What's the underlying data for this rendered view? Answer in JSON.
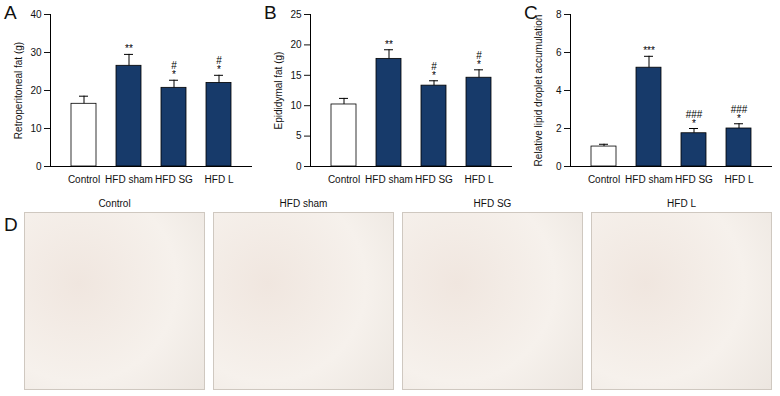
{
  "chart_data": [
    {
      "type": "bar",
      "panel": "A",
      "y_label": "Retroperitoneal fat (g)",
      "categories": [
        "Control",
        "HFD sham",
        "HFD SG",
        "HFD L"
      ],
      "values": [
        16.5,
        26.5,
        20.7,
        22.0
      ],
      "errors": [
        2.0,
        3.0,
        2.0,
        2.0
      ],
      "significance": [
        [],
        [
          "**"
        ],
        [
          "#",
          "*"
        ],
        [
          "#",
          "*"
        ]
      ],
      "colors": [
        "#ffffff",
        "#173a6a",
        "#173a6a",
        "#173a6a"
      ],
      "ylim": [
        0,
        40
      ],
      "yticks": [
        0,
        10,
        20,
        30,
        40
      ]
    },
    {
      "type": "bar",
      "panel": "B",
      "y_label": "Epididymal fat (g)",
      "categories": [
        "Control",
        "HFD sham",
        "HFD SG",
        "HFD L"
      ],
      "values": [
        10.2,
        17.7,
        13.3,
        14.6
      ],
      "errors": [
        1.0,
        1.5,
        0.8,
        1.3
      ],
      "significance": [
        [],
        [
          "**"
        ],
        [
          "#",
          "*"
        ],
        [
          "#",
          "*"
        ]
      ],
      "colors": [
        "#ffffff",
        "#173a6a",
        "#173a6a",
        "#173a6a"
      ],
      "ylim": [
        0,
        25
      ],
      "yticks": [
        0,
        5,
        10,
        15,
        20,
        25
      ]
    },
    {
      "type": "bar",
      "panel": "C",
      "y_label": "Relative lipid droplet accumulation",
      "categories": [
        "Control",
        "HFD sham",
        "HFD SG",
        "HFD L"
      ],
      "values": [
        1.05,
        5.2,
        1.75,
        2.0
      ],
      "errors": [
        0.12,
        0.6,
        0.25,
        0.25
      ],
      "significance": [
        [],
        [
          "***"
        ],
        [
          "###",
          "*"
        ],
        [
          "###",
          "*"
        ]
      ],
      "colors": [
        "#ffffff",
        "#173a6a",
        "#173a6a",
        "#173a6a"
      ],
      "ylim": [
        0,
        8
      ],
      "yticks": [
        0,
        2,
        4,
        6,
        8
      ]
    },
    {
      "type": "image_grid",
      "panel": "D",
      "categories": [
        "Control",
        "HFD sham",
        "HFD SG",
        "HFD L"
      ]
    }
  ]
}
